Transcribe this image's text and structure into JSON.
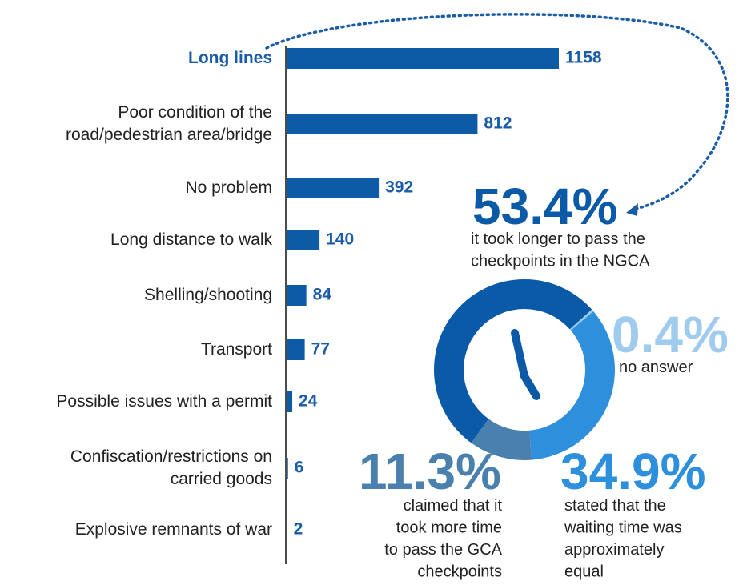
{
  "chart_data": [
    {
      "type": "bar",
      "categories": [
        "Long lines",
        "Poor condition of the\nroad/pedestrian area/bridge",
        "No problem",
        "Long distance to walk",
        "Shelling/shooting",
        "Transport",
        "Possible issues with a permit",
        "Confiscation/restrictions on\ncarried goods",
        "Explosive remnants of war"
      ],
      "values": [
        1158,
        812,
        392,
        140,
        84,
        77,
        24,
        6,
        2
      ],
      "color": "#0d5aa7",
      "highlight_index": 0
    },
    {
      "type": "pie",
      "categories": [
        "it took longer to pass the\ncheckpoints in the NGCA",
        "no answer",
        "stated that the\nwaiting time was\napproximately\nequal",
        "claimed that it\ntook more time\nto pass the GCA\ncheckpoints"
      ],
      "values": [
        53.4,
        0.4,
        34.9,
        11.3
      ],
      "value_labels": [
        "53.4%",
        "0.4%",
        "34.9%",
        "11.3%"
      ],
      "colors": [
        "#0b5aa8",
        "#9fcbef",
        "#2e8fdc",
        "#4a80ad"
      ]
    }
  ]
}
